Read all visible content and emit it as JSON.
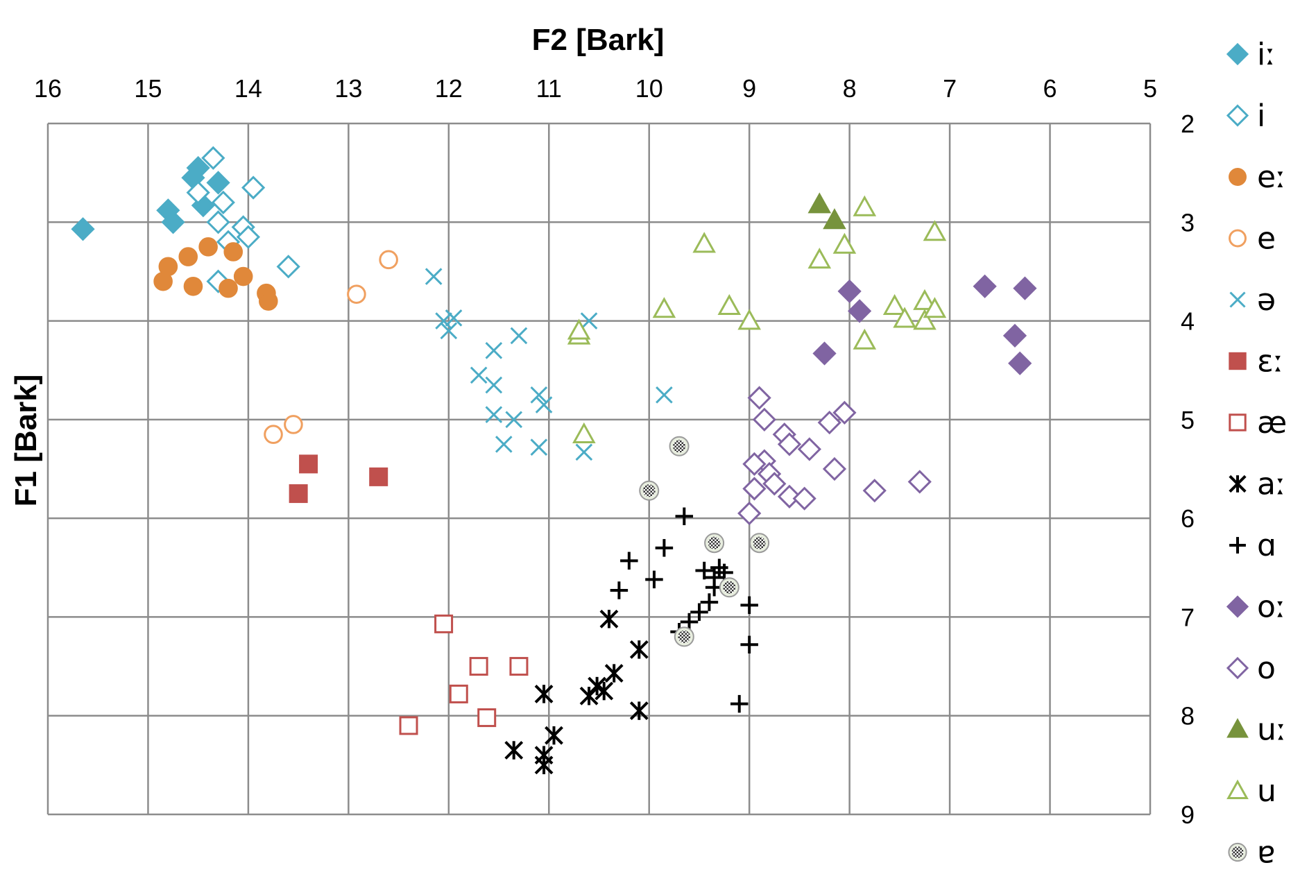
{
  "chart_data": {
    "type": "scatter",
    "title": "",
    "xlabel": "F2 [Bark]",
    "ylabel": "F1 [Bark]",
    "xlim": [
      16,
      5
    ],
    "ylim": [
      2,
      9
    ],
    "x_ticks": [
      "16",
      "15",
      "14",
      "13",
      "12",
      "11",
      "10",
      "9",
      "8",
      "7",
      "6",
      "5"
    ],
    "y_ticks": [
      "2",
      "3",
      "4",
      "5",
      "6",
      "7",
      "8",
      "9"
    ],
    "x_axis_position": "top",
    "y_axis_position": "right",
    "legend_position": "right",
    "grid": true,
    "series": [
      {
        "name": "iː",
        "marker": "diamond",
        "filled": true,
        "color": "#4BACC6",
        "points": [
          [
            15.65,
            3.07
          ],
          [
            14.5,
            2.45
          ],
          [
            14.55,
            2.55
          ],
          [
            14.3,
            2.6
          ],
          [
            14.8,
            2.88
          ],
          [
            14.75,
            3.0
          ],
          [
            14.45,
            2.83
          ]
        ]
      },
      {
        "name": "i",
        "marker": "diamond",
        "filled": false,
        "color": "#4BACC6",
        "points": [
          [
            14.35,
            2.35
          ],
          [
            13.95,
            2.65
          ],
          [
            14.5,
            2.7
          ],
          [
            14.25,
            2.8
          ],
          [
            14.3,
            3.0
          ],
          [
            14.05,
            3.05
          ],
          [
            14.2,
            3.2
          ],
          [
            13.6,
            3.45
          ],
          [
            14.3,
            3.6
          ],
          [
            14.0,
            3.15
          ]
        ]
      },
      {
        "name": "eː",
        "marker": "circle",
        "filled": true,
        "color": "#E0883A",
        "points": [
          [
            14.4,
            3.25
          ],
          [
            14.6,
            3.35
          ],
          [
            14.15,
            3.3
          ],
          [
            14.8,
            3.45
          ],
          [
            14.85,
            3.6
          ],
          [
            14.55,
            3.65
          ],
          [
            14.2,
            3.67
          ],
          [
            14.05,
            3.55
          ],
          [
            13.82,
            3.72
          ],
          [
            13.8,
            3.8
          ]
        ]
      },
      {
        "name": "e",
        "marker": "circle",
        "filled": false,
        "color": "#F0A060",
        "points": [
          [
            12.6,
            3.38
          ],
          [
            12.92,
            3.73
          ],
          [
            13.55,
            5.05
          ],
          [
            13.75,
            5.15
          ]
        ]
      },
      {
        "name": "ə",
        "marker": "x",
        "filled": false,
        "color": "#4BACC6",
        "points": [
          [
            12.15,
            3.55
          ],
          [
            12.05,
            4.0
          ],
          [
            11.95,
            3.97
          ],
          [
            12.0,
            4.1
          ],
          [
            11.55,
            4.3
          ],
          [
            11.3,
            4.15
          ],
          [
            11.7,
            4.55
          ],
          [
            11.55,
            4.65
          ],
          [
            11.55,
            4.95
          ],
          [
            11.35,
            5.0
          ],
          [
            11.45,
            5.25
          ],
          [
            11.1,
            4.75
          ],
          [
            11.05,
            4.85
          ],
          [
            11.1,
            5.28
          ],
          [
            10.6,
            4.0
          ],
          [
            10.65,
            5.33
          ],
          [
            9.85,
            4.75
          ]
        ]
      },
      {
        "name": "ɛː",
        "marker": "square",
        "filled": true,
        "color": "#C0504D",
        "points": [
          [
            13.4,
            5.45
          ],
          [
            13.5,
            5.75
          ],
          [
            12.7,
            5.58
          ]
        ]
      },
      {
        "name": "æ",
        "marker": "square",
        "filled": false,
        "color": "#C0504D",
        "points": [
          [
            12.05,
            7.07
          ],
          [
            11.7,
            7.5
          ],
          [
            11.3,
            7.5
          ],
          [
            11.9,
            7.78
          ],
          [
            11.62,
            8.02
          ],
          [
            12.4,
            8.1
          ]
        ]
      },
      {
        "name": "aː",
        "marker": "asterisk",
        "filled": false,
        "color": "#000000",
        "points": [
          [
            10.4,
            7.02
          ],
          [
            10.1,
            7.33
          ],
          [
            10.35,
            7.57
          ],
          [
            10.45,
            7.75
          ],
          [
            10.6,
            7.8
          ],
          [
            10.52,
            7.7
          ],
          [
            11.05,
            7.78
          ],
          [
            10.1,
            7.95
          ],
          [
            10.95,
            8.2
          ],
          [
            11.05,
            8.4
          ],
          [
            11.35,
            8.35
          ],
          [
            11.05,
            8.5
          ]
        ]
      },
      {
        "name": "ɑ",
        "marker": "plus",
        "filled": false,
        "color": "#000000",
        "points": [
          [
            9.65,
            5.98
          ],
          [
            9.85,
            6.3
          ],
          [
            10.2,
            6.43
          ],
          [
            9.95,
            6.62
          ],
          [
            10.3,
            6.73
          ],
          [
            9.45,
            6.53
          ],
          [
            9.3,
            6.5
          ],
          [
            9.25,
            6.55
          ],
          [
            9.35,
            6.7
          ],
          [
            9.4,
            6.85
          ],
          [
            9.5,
            6.95
          ],
          [
            9.6,
            7.05
          ],
          [
            9.7,
            7.15
          ],
          [
            9.0,
            6.88
          ],
          [
            9.0,
            7.28
          ],
          [
            9.1,
            7.88
          ],
          [
            9.35,
            6.6
          ]
        ]
      },
      {
        "name": "oː",
        "marker": "diamond",
        "filled": true,
        "color": "#8064A2",
        "points": [
          [
            8.0,
            3.7
          ],
          [
            7.9,
            3.9
          ],
          [
            8.25,
            4.33
          ],
          [
            6.65,
            3.65
          ],
          [
            6.25,
            3.67
          ],
          [
            6.35,
            4.15
          ],
          [
            6.3,
            4.43
          ]
        ]
      },
      {
        "name": "o",
        "marker": "diamond",
        "filled": false,
        "color": "#8064A2",
        "points": [
          [
            8.9,
            4.78
          ],
          [
            8.85,
            5.0
          ],
          [
            8.65,
            5.15
          ],
          [
            8.6,
            5.25
          ],
          [
            8.4,
            5.3
          ],
          [
            8.05,
            4.93
          ],
          [
            8.2,
            5.03
          ],
          [
            8.85,
            5.42
          ],
          [
            8.95,
            5.45
          ],
          [
            8.8,
            5.55
          ],
          [
            8.75,
            5.65
          ],
          [
            8.6,
            5.78
          ],
          [
            8.45,
            5.8
          ],
          [
            8.15,
            5.5
          ],
          [
            7.75,
            5.72
          ],
          [
            7.3,
            5.63
          ],
          [
            9.0,
            5.95
          ],
          [
            8.95,
            5.7
          ]
        ]
      },
      {
        "name": "uː",
        "marker": "triangle",
        "filled": true,
        "color": "#77933C",
        "points": [
          [
            8.3,
            2.82
          ],
          [
            8.15,
            2.98
          ]
        ]
      },
      {
        "name": "u",
        "marker": "triangle",
        "filled": false,
        "color": "#9BBB59",
        "points": [
          [
            7.85,
            2.85
          ],
          [
            7.15,
            3.1
          ],
          [
            9.45,
            3.22
          ],
          [
            8.05,
            3.23
          ],
          [
            8.3,
            3.38
          ],
          [
            9.85,
            3.88
          ],
          [
            9.2,
            3.85
          ],
          [
            9.0,
            4.0
          ],
          [
            7.55,
            3.85
          ],
          [
            7.45,
            3.98
          ],
          [
            7.25,
            3.8
          ],
          [
            7.25,
            4.0
          ],
          [
            7.15,
            3.88
          ],
          [
            10.7,
            4.15
          ],
          [
            10.7,
            4.1
          ],
          [
            7.85,
            4.2
          ],
          [
            10.65,
            5.15
          ]
        ]
      },
      {
        "name": "ɐ",
        "marker": "checker",
        "filled": true,
        "color": "#6D6D6D",
        "points": [
          [
            9.7,
            5.27
          ],
          [
            10.0,
            5.72
          ],
          [
            9.35,
            6.25
          ],
          [
            8.9,
            6.25
          ],
          [
            9.2,
            6.7
          ],
          [
            9.65,
            7.2
          ]
        ]
      }
    ]
  }
}
